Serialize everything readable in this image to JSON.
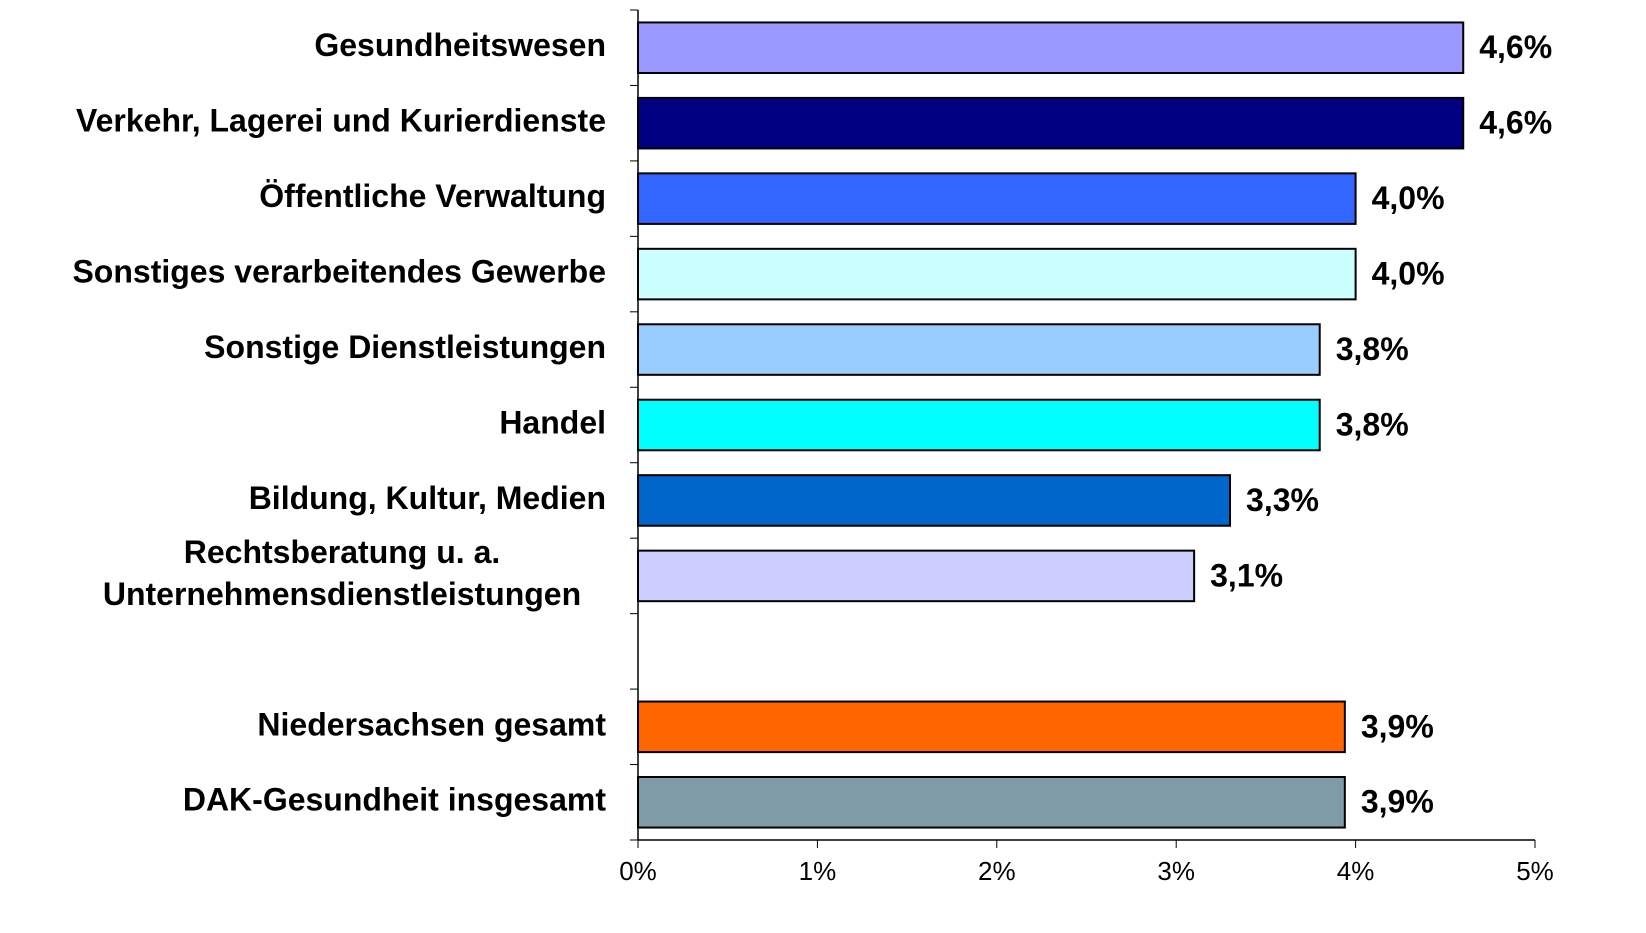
{
  "chart_data": {
    "type": "barh",
    "categories": [
      "Gesundheitswesen",
      "Verkehr, Lagerei und Kurierdienste",
      "Öffentliche Verwaltung",
      "Sonstiges verarbeitendes Gewerbe",
      "Sonstige Dienstleistungen",
      "Handel",
      "Bildung, Kultur, Medien",
      "Rechtsberatung u. a.\nUnternehmensdienstleistungen",
      null,
      "Niedersachsen gesamt",
      "DAK-Gesundheit insgesamt"
    ],
    "values": [
      4.6,
      4.6,
      4.0,
      4.0,
      3.8,
      3.8,
      3.3,
      3.1,
      null,
      3.94,
      3.94
    ],
    "value_labels": [
      "4,6%",
      "4,6%",
      "4,0%",
      "4,0%",
      "3,8%",
      "3,8%",
      "3,3%",
      "3,1%",
      null,
      "3,9%",
      "3,9%"
    ],
    "colors": [
      "#9999ff",
      "#000080",
      "#3366ff",
      "#ccffff",
      "#99ccff",
      "#00ffff",
      "#0066cc",
      "#ccccff",
      null,
      "#ff6600",
      "#7f9ba8"
    ],
    "xlim": [
      0,
      5
    ],
    "xticks": [
      {
        "value": 0,
        "label": "0%"
      },
      {
        "value": 1,
        "label": "1%"
      },
      {
        "value": 2,
        "label": "2%"
      },
      {
        "value": 3,
        "label": "3%"
      },
      {
        "value": 4,
        "label": "4%"
      },
      {
        "value": 5,
        "label": "5%"
      }
    ],
    "grid": false
  }
}
